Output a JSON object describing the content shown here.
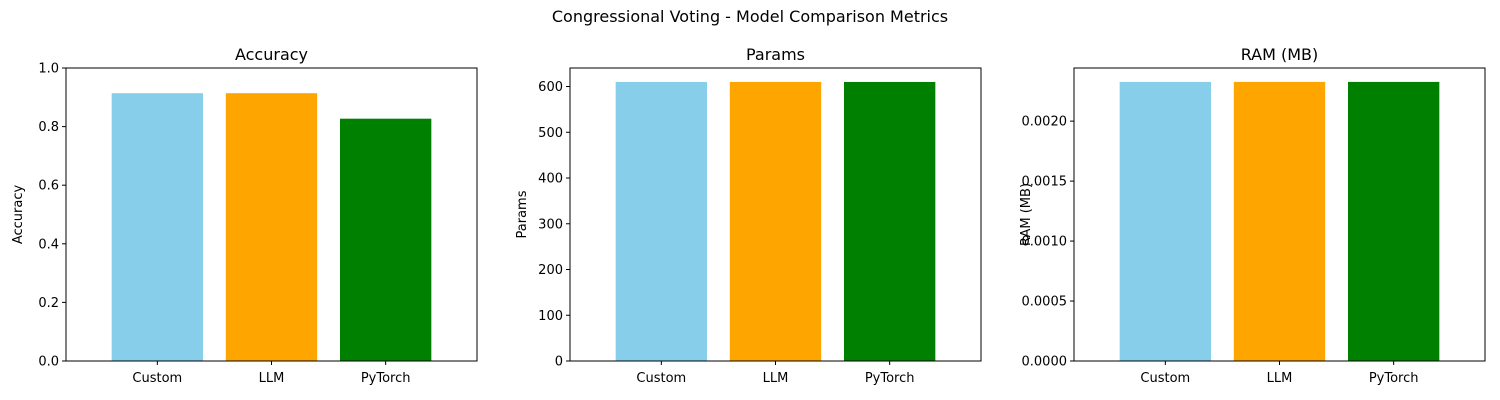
{
  "figure": {
    "title": "Congressional Voting - Model Comparison Metrics"
  },
  "chart_data": [
    {
      "type": "bar",
      "title": "Accuracy",
      "xlabel": "",
      "ylabel": "Accuracy",
      "categories": [
        "Custom",
        "LLM",
        "PyTorch"
      ],
      "values": [
        0.914,
        0.914,
        0.827
      ],
      "colors": [
        "#87CEEB",
        "#FFA500",
        "#008000"
      ],
      "ylim": [
        0,
        1.0
      ],
      "yticks": [
        0.0,
        0.2,
        0.4,
        0.6,
        0.8,
        1.0
      ],
      "ytick_labels": [
        "0.0",
        "0.2",
        "0.4",
        "0.6",
        "0.8",
        "1.0"
      ],
      "grid": false,
      "legend": "none"
    },
    {
      "type": "bar",
      "title": "Params",
      "xlabel": "",
      "ylabel": "Params",
      "categories": [
        "Custom",
        "LLM",
        "PyTorch"
      ],
      "values": [
        610,
        610,
        610
      ],
      "colors": [
        "#87CEEB",
        "#FFA500",
        "#008000"
      ],
      "ylim": [
        0,
        640.5
      ],
      "yticks": [
        0,
        100,
        200,
        300,
        400,
        500,
        600
      ],
      "ytick_labels": [
        "0",
        "100",
        "200",
        "300",
        "400",
        "500",
        "600"
      ],
      "grid": false,
      "legend": "none"
    },
    {
      "type": "bar",
      "title": "RAM (MB)",
      "xlabel": "",
      "ylabel": "RAM (MB)",
      "categories": [
        "Custom",
        "LLM",
        "PyTorch"
      ],
      "values": [
        0.002327,
        0.002327,
        0.002327
      ],
      "colors": [
        "#87CEEB",
        "#FFA500",
        "#008000"
      ],
      "ylim": [
        0,
        0.002443
      ],
      "yticks": [
        0.0,
        0.0005,
        0.001,
        0.0015,
        0.002
      ],
      "ytick_labels": [
        "0.0000",
        "0.0005",
        "0.0010",
        "0.0015",
        "0.0020"
      ],
      "grid": false,
      "legend": "none"
    }
  ]
}
